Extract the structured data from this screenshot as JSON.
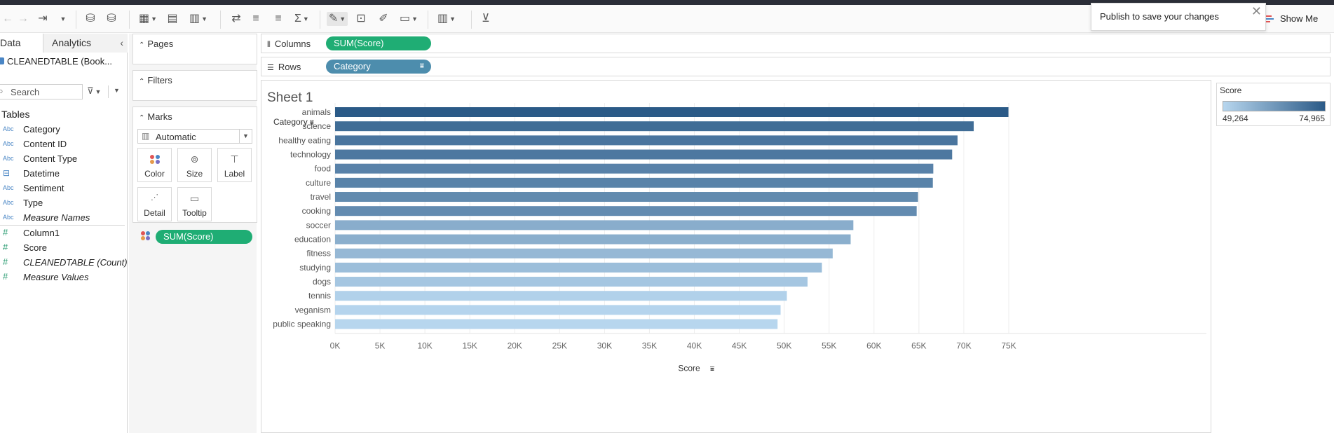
{
  "toast": {
    "text": "Publish to save your changes",
    "close": "✕"
  },
  "showme_label": "Show Me",
  "left": {
    "tab_data": "Data",
    "tab_analytics": "Analytics",
    "collapse": "‹",
    "datasource": "CLEANEDTABLE (Book...",
    "search_placeholder": "Search",
    "tables_title": "Tables",
    "fields": [
      {
        "icon": "Abc",
        "label": "Category",
        "kind": "dim"
      },
      {
        "icon": "Abc",
        "label": "Content ID",
        "kind": "dim"
      },
      {
        "icon": "Abc",
        "label": "Content Type",
        "kind": "dim"
      },
      {
        "icon": "⊟",
        "label": "Datetime",
        "kind": "date"
      },
      {
        "icon": "Abc",
        "label": "Sentiment",
        "kind": "dim"
      },
      {
        "icon": "Abc",
        "label": "Type",
        "kind": "dim"
      },
      {
        "icon": "Abc",
        "label": "Measure Names",
        "kind": "dim-it"
      },
      {
        "icon": "#",
        "label": "Column1",
        "kind": "meas"
      },
      {
        "icon": "#",
        "label": "Score",
        "kind": "meas"
      },
      {
        "icon": "#",
        "label": "CLEANEDTABLE (Count)",
        "kind": "meas-it"
      },
      {
        "icon": "#",
        "label": "Measure Values",
        "kind": "meas-it"
      }
    ]
  },
  "cards": {
    "pages": "Pages",
    "filters": "Filters",
    "marks": "Marks",
    "marks_type": "Automatic",
    "buttons": {
      "color": "Color",
      "size": "Size",
      "label": "Label",
      "detail": "Detail",
      "tooltip": "Tooltip"
    },
    "marks_pill": "SUM(Score)"
  },
  "shelves": {
    "columns_label": "Columns",
    "columns_pill": "SUM(Score)",
    "rows_label": "Rows",
    "rows_pill": "Category"
  },
  "sheet": {
    "title": "Sheet 1",
    "category_header": "Category"
  },
  "chart_data": {
    "type": "bar",
    "orientation": "horizontal",
    "categories": [
      "animals",
      "science",
      "healthy eating",
      "technology",
      "food",
      "culture",
      "travel",
      "cooking",
      "soccer",
      "education",
      "fitness",
      "studying",
      "dogs",
      "tennis",
      "veganism",
      "public speaking"
    ],
    "values": [
      74965,
      71100,
      69300,
      68700,
      66600,
      66550,
      64900,
      64750,
      57700,
      57400,
      55400,
      54200,
      52600,
      50300,
      49600,
      49264
    ],
    "xlabel": "Score",
    "ylabel": "Category",
    "xlim": [
      0,
      80000
    ],
    "xticks": [
      "0K",
      "5K",
      "10K",
      "15K",
      "20K",
      "25K",
      "30K",
      "35K",
      "40K",
      "45K",
      "50K",
      "55K",
      "60K",
      "65K",
      "70K",
      "75K"
    ],
    "color_min": "#b7d6ee",
    "color_max": "#2b5a87",
    "grid": true
  },
  "legend": {
    "title": "Score",
    "min": "49,264",
    "max": "74,965"
  }
}
